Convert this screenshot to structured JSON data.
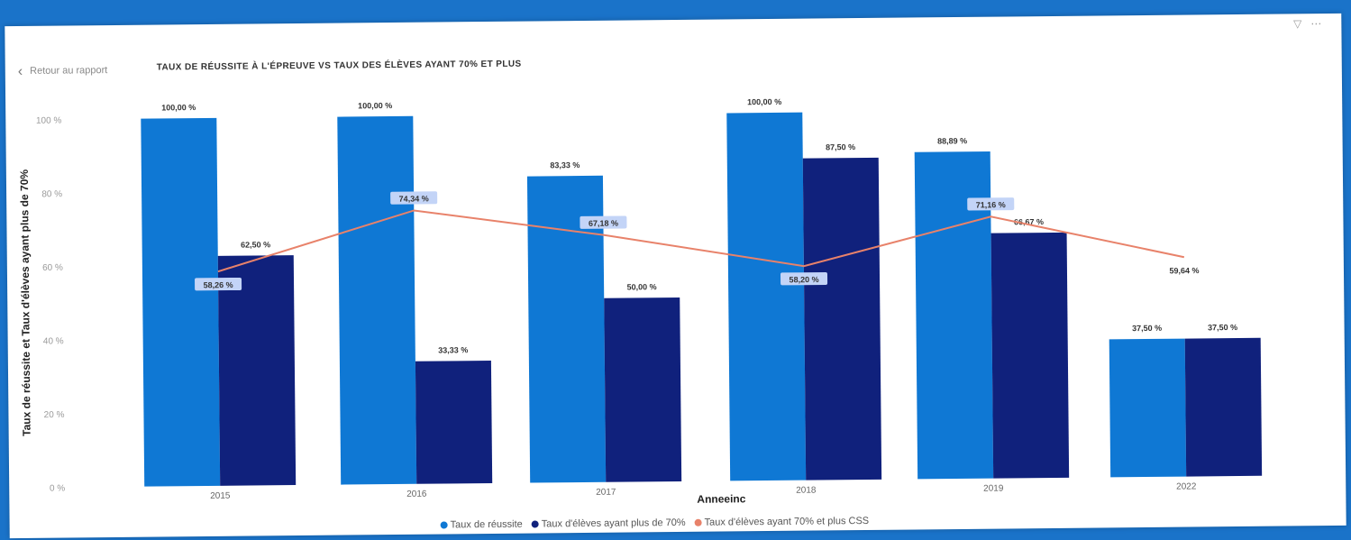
{
  "header": {
    "back_label": "Retour au rapport",
    "chart_title": "TAUX DE RÉUSSITE À L'ÉPREUVE VS TAUX DES ÉLÈVES AYANT 70% ET PLUS"
  },
  "colors": {
    "reussite": "#0f78d4",
    "eleves70": "#10217c",
    "css_line": "#e8826a",
    "label_bg": "#c3d4f7"
  },
  "icons": [
    "filter-icon",
    "more-options-icon"
  ],
  "chart_data": {
    "type": "bar",
    "title": "TAUX DE RÉUSSITE À L'ÉPREUVE VS TAUX DES ÉLÈVES AYANT 70% ET PLUS",
    "xlabel": "Anneeinc",
    "ylabel": "Taux de réussite et Taux d'élèves ayant plus de 70%",
    "ylim": [
      0,
      100
    ],
    "yticks": [
      "0 %",
      "20 %",
      "40 %",
      "60 %",
      "80 %",
      "100 %"
    ],
    "categories": [
      "2015",
      "2016",
      "2017",
      "2018",
      "2019",
      "2022"
    ],
    "series": [
      {
        "name": "Taux de réussite",
        "type": "bar",
        "values": [
          100.0,
          100.0,
          83.33,
          100.0,
          88.89,
          37.5
        ],
        "labels": [
          "100,00 %",
          "100,00 %",
          "83,33 %",
          "100,00 %",
          "88,89 %",
          "37,50 %"
        ]
      },
      {
        "name": "Taux d'élèves ayant plus de 70%",
        "type": "bar",
        "values": [
          62.5,
          33.33,
          50.0,
          87.5,
          66.67,
          37.5
        ],
        "labels": [
          "62,50 %",
          "33,33 %",
          "50,00 %",
          "87,50 %",
          "66,67 %",
          "37,50 %"
        ]
      },
      {
        "name": "Taux d'élèves ayant 70% et plus CSS",
        "type": "line",
        "values": [
          58.26,
          74.34,
          67.18,
          58.2,
          71.16,
          59.64
        ],
        "labels": [
          "58,26 %",
          "74,34 %",
          "67,18 %",
          "58,20 %",
          "71,16 %",
          "59,64 %"
        ]
      }
    ],
    "legend_position": "bottom",
    "grid": false
  }
}
